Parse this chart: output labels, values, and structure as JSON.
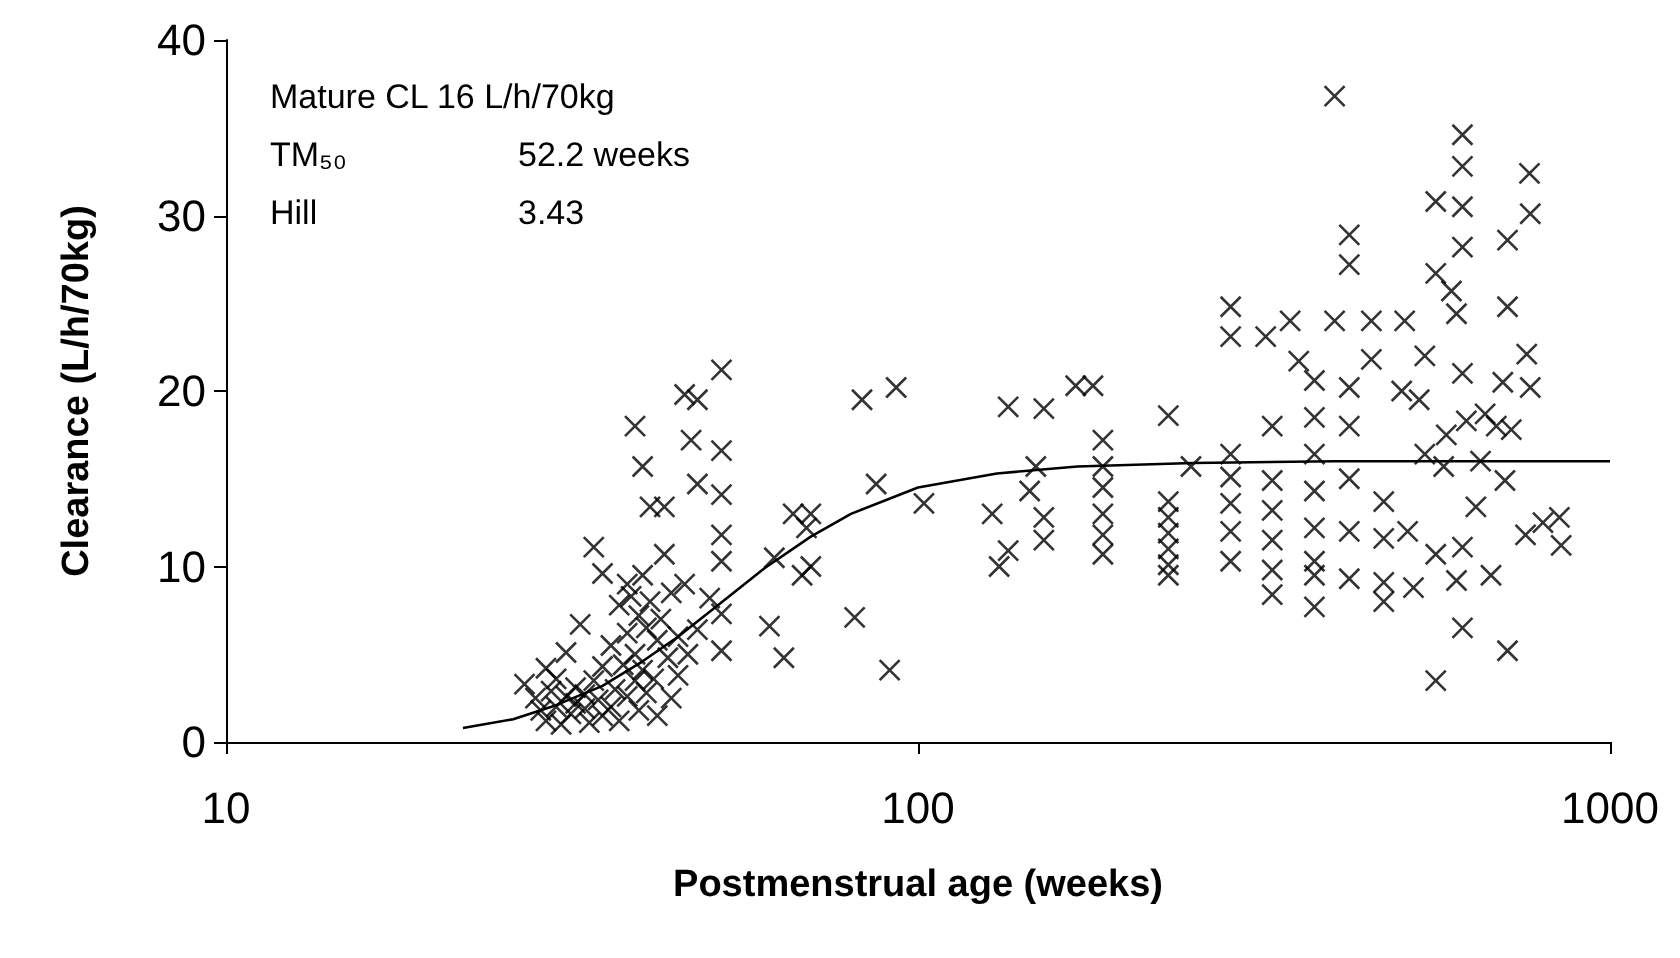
{
  "chart_data": {
    "type": "scatter",
    "xlabel": "Postmenstrual age (weeks)",
    "ylabel": "Clearance (L/h/70kg)",
    "xlim": [
      10,
      1000
    ],
    "xticks": [
      10,
      100,
      1000
    ],
    "ylim": [
      0,
      40
    ],
    "yticks": [
      0,
      10,
      20,
      30,
      40
    ],
    "log": "x",
    "grid": false,
    "annotations": [
      "Mature CL 16 L/h/70kg",
      "TM₅₀",
      "52.2 weeks",
      "Hill",
      "3.43"
    ],
    "series": [
      {
        "marker": "cross",
        "color": "#000000",
        "x": [
          27,
          28,
          28.5,
          29,
          29,
          29.5,
          30,
          30,
          30.5,
          31,
          31,
          31.5,
          32,
          32,
          32.5,
          33,
          33,
          33.5,
          34,
          34,
          34.5,
          35,
          35,
          35,
          36,
          36,
          36.5,
          37,
          37,
          37.5,
          38,
          38,
          38,
          38.5,
          39,
          39,
          39,
          39.5,
          39.5,
          40,
          40,
          40,
          40.5,
          40.5,
          41,
          41,
          41.5,
          42,
          42,
          42.5,
          43,
          43,
          43.5,
          44,
          44,
          45,
          45,
          46,
          46,
          46.5,
          47,
          48,
          48,
          48,
          50,
          52,
          52,
          52,
          52,
          52,
          52,
          52,
          61,
          64,
          62,
          66,
          70,
          68,
          69,
          70,
          83,
          93,
          81,
          91,
          87,
          102,
          135,
          152,
          128,
          131,
          135,
          145,
          148,
          152,
          152,
          169,
          179,
          185,
          185,
          185,
          185,
          185,
          185,
          230,
          230,
          230,
          230,
          230,
          230,
          230,
          248,
          283,
          283,
          283,
          283,
          283,
          283,
          283,
          325,
          325,
          325,
          325,
          325,
          325,
          318,
          345,
          355,
          374,
          374,
          374,
          374,
          374,
          374,
          374,
          374,
          400,
          420,
          420,
          400,
          420,
          420,
          420,
          420,
          420,
          452,
          452,
          471,
          471,
          471,
          471,
          505,
          560,
          560,
          612,
          612,
          612,
          612,
          560,
          612,
          711,
          711,
          711,
          765,
          767,
          845,
          850,
          767,
          673,
          600,
          685,
          705,
          755,
          758,
          520,
          560,
          612,
          530,
          540,
          575,
          612,
          640,
          660,
          500,
          510,
          540,
          580,
          590,
          600,
          650,
          700,
          720,
          800,
          620
        ],
        "values": [
          3.3,
          2.5,
          1.8,
          4.2,
          1.2,
          2.9,
          2.0,
          3.6,
          1.0,
          2.6,
          5.1,
          1.6,
          2.2,
          3.1,
          6.7,
          1.9,
          2.7,
          1.1,
          3.5,
          11.1,
          2.4,
          1.5,
          4.3,
          9.6,
          2.0,
          5.5,
          3.0,
          7.8,
          1.2,
          4.4,
          9.0,
          2.6,
          6.2,
          8.3,
          3.5,
          5.0,
          18.0,
          7.2,
          1.8,
          9.5,
          4.1,
          15.7,
          6.5,
          2.8,
          8.0,
          13.4,
          3.6,
          5.8,
          1.5,
          7.0,
          10.7,
          13.4,
          4.8,
          2.5,
          8.5,
          6.0,
          3.8,
          19.8,
          9.0,
          5.0,
          17.2,
          19.5,
          14.7,
          6.4,
          8.2,
          21.2,
          16.6,
          14.1,
          11.8,
          10.3,
          7.3,
          5.2,
          6.6,
          4.8,
          10.5,
          13.0,
          13.0,
          9.5,
          12.2,
          10.0,
          19.5,
          20.2,
          7.1,
          4.1,
          14.7,
          13.6,
          19.1,
          19.0,
          13.0,
          10.0,
          10.9,
          14.3,
          15.7,
          12.8,
          11.5,
          20.3,
          20.3,
          17.2,
          15.7,
          14.5,
          13.0,
          11.8,
          10.7,
          18.6,
          13.7,
          12.8,
          11.9,
          11.0,
          10.1,
          9.5,
          15.7,
          24.8,
          23.1,
          16.4,
          15.1,
          13.6,
          12.0,
          10.3,
          18.0,
          14.9,
          13.2,
          11.5,
          9.8,
          8.4,
          23.1,
          24.0,
          21.7,
          20.6,
          18.5,
          16.4,
          14.3,
          12.2,
          10.3,
          9.5,
          7.7,
          36.8,
          28.9,
          27.2,
          24.0,
          20.2,
          18.0,
          15.0,
          12.0,
          9.3,
          24.0,
          21.8,
          13.7,
          11.6,
          9.1,
          8.0,
          24.0,
          30.8,
          26.7,
          34.6,
          32.8,
          30.5,
          28.2,
          3.5,
          6.5,
          5.2,
          28.6,
          24.8,
          32.4,
          30.1,
          12.8,
          11.2,
          20.2,
          9.5,
          24.4,
          18.0,
          14.9,
          11.8,
          22.1,
          8.8,
          10.7,
          11.1,
          19.5,
          16.4,
          15.7,
          21.0,
          13.4,
          18.7,
          20.0,
          12.0,
          22.0,
          17.5,
          25.7,
          9.2,
          16.0,
          20.5,
          17.8,
          12.5,
          18.3
        ]
      },
      {
        "type": "line",
        "color": "#000000",
        "x": [
          22,
          26,
          30,
          35,
          40,
          45,
          52.2,
          60,
          70,
          80,
          100,
          130,
          170,
          250,
          400,
          1000
        ],
        "values": [
          0.8,
          1.3,
          2.1,
          3.2,
          4.6,
          6.0,
          8.0,
          9.9,
          11.7,
          13.0,
          14.5,
          15.3,
          15.7,
          15.9,
          16.0,
          16.0
        ]
      }
    ]
  }
}
